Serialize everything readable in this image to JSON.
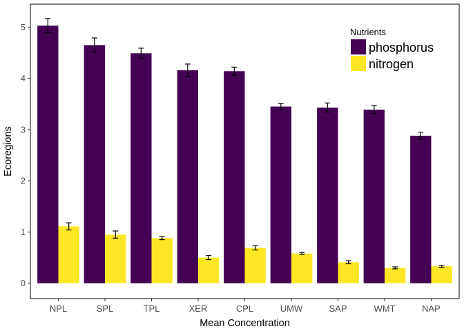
{
  "chart_data": {
    "type": "bar",
    "xlabel": "Mean Concentration",
    "ylabel": "Ecoregions",
    "ylim": [
      -0.3,
      5.45
    ],
    "yticks": [
      0,
      1,
      2,
      3,
      4,
      5
    ],
    "grid": false,
    "legend": {
      "title": "Nutrients",
      "placement": "top-right"
    },
    "categories": [
      "NPL",
      "SPL",
      "TPL",
      "XER",
      "CPL",
      "UMW",
      "SAP",
      "WMT",
      "NAP"
    ],
    "series": [
      {
        "name": "phosphorus",
        "color": "#440154",
        "values": [
          5.03,
          4.65,
          4.49,
          4.16,
          4.14,
          3.45,
          3.43,
          3.39,
          2.88
        ],
        "errors": [
          0.14,
          0.14,
          0.1,
          0.12,
          0.08,
          0.06,
          0.09,
          0.08,
          0.07
        ]
      },
      {
        "name": "nitrogen",
        "color": "#FDE725",
        "values": [
          1.11,
          0.95,
          0.88,
          0.5,
          0.69,
          0.58,
          0.41,
          0.3,
          0.33
        ],
        "errors": [
          0.07,
          0.07,
          0.03,
          0.04,
          0.04,
          0.02,
          0.03,
          0.02,
          0.02
        ]
      }
    ]
  }
}
